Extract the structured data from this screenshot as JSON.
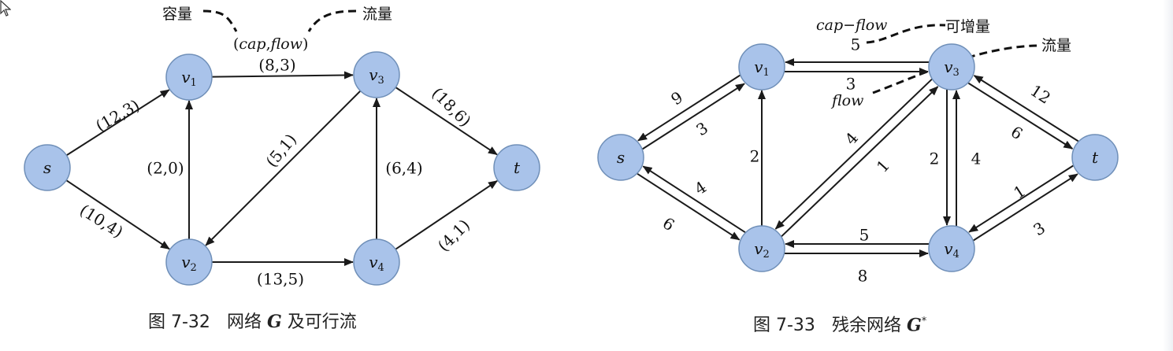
{
  "figure1": {
    "nodes": [
      {
        "id": "s",
        "label": "s",
        "sub": ""
      },
      {
        "id": "v1",
        "label": "v",
        "sub": "1"
      },
      {
        "id": "v2",
        "label": "v",
        "sub": "2"
      },
      {
        "id": "v3",
        "label": "v",
        "sub": "3"
      },
      {
        "id": "v4",
        "label": "v",
        "sub": "4"
      },
      {
        "id": "t",
        "label": "t",
        "sub": ""
      }
    ],
    "edges": [
      {
        "from": "s",
        "to": "v1",
        "label": "(12,3)"
      },
      {
        "from": "s",
        "to": "v2",
        "label": "(10,4)"
      },
      {
        "from": "v2",
        "to": "v1",
        "label": "(2,0)"
      },
      {
        "from": "v1",
        "to": "v3",
        "label": "(8,3)"
      },
      {
        "from": "v3",
        "to": "v2",
        "label": "(5,1)"
      },
      {
        "from": "v2",
        "to": "v4",
        "label": "(13,5)"
      },
      {
        "from": "v4",
        "to": "v3",
        "label": "(6,4)"
      },
      {
        "from": "v3",
        "to": "t",
        "label": "(18,6)"
      },
      {
        "from": "v4",
        "to": "t",
        "label": "(4,1)"
      }
    ],
    "annotations": {
      "capacity": "容量",
      "flow": "流量",
      "legend_open": "(",
      "legend_cap": "cap",
      "legend_comma": ",",
      "legend_flow": "flow",
      "legend_close": ")"
    },
    "caption": {
      "number": "图 7-32",
      "text_before": "网络",
      "symbol": "G",
      "text_after": "及可行流"
    }
  },
  "figure2": {
    "nodes": [
      {
        "id": "s",
        "label": "s",
        "sub": ""
      },
      {
        "id": "v1",
        "label": "v",
        "sub": "1"
      },
      {
        "id": "v2",
        "label": "v",
        "sub": "2"
      },
      {
        "id": "v3",
        "label": "v",
        "sub": "3"
      },
      {
        "id": "v4",
        "label": "v",
        "sub": "4"
      },
      {
        "id": "t",
        "label": "t",
        "sub": ""
      }
    ],
    "edges": [
      {
        "from": "s",
        "to": "v1",
        "label": "9"
      },
      {
        "from": "v1",
        "to": "s",
        "label": "3"
      },
      {
        "from": "v2",
        "to": "s",
        "label": "4"
      },
      {
        "from": "s",
        "to": "v2",
        "label": "6"
      },
      {
        "from": "v2",
        "to": "v1",
        "label": "2"
      },
      {
        "from": "v1",
        "to": "v3",
        "label": "5"
      },
      {
        "from": "v3",
        "to": "v1",
        "label": "3"
      },
      {
        "from": "v3",
        "to": "v2",
        "label": "4"
      },
      {
        "from": "v2",
        "to": "v3",
        "label": "1"
      },
      {
        "from": "v4",
        "to": "v2",
        "label": "5"
      },
      {
        "from": "v2",
        "to": "v4",
        "label": "8"
      },
      {
        "from": "v4",
        "to": "v3",
        "label": "2"
      },
      {
        "from": "v3",
        "to": "v4",
        "label": "4"
      },
      {
        "from": "v3",
        "to": "t",
        "label": "12"
      },
      {
        "from": "t",
        "to": "v3",
        "label": "6"
      },
      {
        "from": "t",
        "to": "v4",
        "label": "1"
      },
      {
        "from": "v4",
        "to": "t",
        "label": "3"
      }
    ],
    "annotations": {
      "cap_flow": "cap−flow",
      "increase": "可增量",
      "flow_label": "flow",
      "flow_cn": "流量"
    },
    "caption": {
      "number": "图 7-33",
      "text_before": "残余网络",
      "symbol": "G",
      "sup": "*"
    }
  },
  "colors": {
    "node_fill": "#a9c3ea",
    "node_stroke": "#6f8fb8",
    "ink": "#111111"
  }
}
